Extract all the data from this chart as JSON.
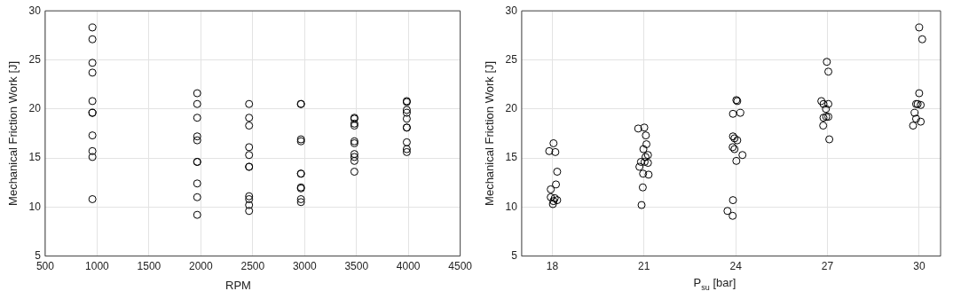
{
  "chart_data": [
    {
      "type": "scatter",
      "xlabel": "RPM",
      "ylabel": "Mechanical Friction Work [J]",
      "xlim": [
        500,
        4500
      ],
      "xticks": [
        500,
        1000,
        1500,
        2000,
        2500,
        3000,
        3500,
        4000,
        4500
      ],
      "ylim": [
        5,
        30
      ],
      "yticks": [
        5,
        10,
        15,
        20,
        25,
        30
      ],
      "grid": true,
      "marker": "circle",
      "series": [
        {
          "color": "#000000",
          "x": [
            955,
            955,
            955,
            955,
            955,
            955,
            955,
            955,
            955,
            955,
            955,
            1965,
            1965,
            1965,
            1965,
            1965,
            1965,
            1965,
            1965,
            1965,
            1965,
            2465,
            2465,
            2465,
            2465,
            2465,
            2465,
            2465,
            2465,
            2465,
            2465,
            2465,
            2965,
            2965,
            2965,
            2965,
            2965,
            2965,
            2965,
            2965,
            2965,
            2965,
            3480,
            3480,
            3480,
            3480,
            3480,
            3480,
            3480,
            3480,
            3480,
            3480,
            3985,
            3985,
            3985,
            3985,
            3985,
            3985,
            3985,
            3985,
            3985,
            3985
          ],
          "values": [
            28.3,
            27.1,
            24.7,
            23.7,
            20.8,
            19.6,
            19.6,
            17.3,
            15.7,
            15.1,
            10.8,
            21.6,
            20.5,
            19.1,
            17.2,
            16.8,
            14.6,
            14.6,
            12.4,
            11.0,
            9.2,
            20.5,
            19.1,
            18.3,
            16.1,
            15.3,
            14.1,
            14.1,
            11.1,
            10.8,
            10.2,
            9.6,
            20.5,
            20.5,
            16.9,
            16.7,
            13.4,
            13.4,
            12.0,
            11.9,
            10.8,
            10.5,
            19.1,
            19.0,
            18.5,
            18.3,
            16.7,
            16.5,
            15.4,
            15.1,
            14.7,
            13.6,
            20.8,
            20.7,
            19.9,
            19.6,
            19.0,
            18.1,
            18.1,
            16.6,
            15.9,
            15.6
          ]
        }
      ]
    },
    {
      "type": "scatter",
      "xlabel": "P$_{su}$ [bar]",
      "ylabel": "Mechanical Friction Work [J]",
      "xlim": [
        17,
        30.7
      ],
      "xticks": [
        18,
        21,
        24,
        27,
        30
      ],
      "ylim": [
        5,
        30
      ],
      "yticks": [
        5,
        10,
        15,
        20,
        25,
        30
      ],
      "grid": true,
      "marker": "circle",
      "series": [
        {
          "color": "#000000",
          "x": [
            18.04,
            17.9,
            18.1,
            18.16,
            18.12,
            17.95,
            17.95,
            18.08,
            18.16,
            18.04,
            18.02,
            20.81,
            21.01,
            21.06,
            21.08,
            20.98,
            21.13,
            21.05,
            21.02,
            20.9,
            21.13,
            20.85,
            20.97,
            21.15,
            20.96,
            20.92,
            24.02,
            24.05,
            23.91,
            24.15,
            23.91,
            23.96,
            24.05,
            23.9,
            23.96,
            24.22,
            24.02,
            23.91,
            23.73,
            23.9,
            26.98,
            27.03,
            26.8,
            26.87,
            27.03,
            26.95,
            26.87,
            26.96,
            27.03,
            26.86,
            27.06,
            30.0,
            30.1,
            30.0,
            29.9,
            29.95,
            30.05,
            29.85,
            29.9,
            30.05,
            29.8
          ],
          "values": [
            16.5,
            15.7,
            15.6,
            13.6,
            12.3,
            11.8,
            11.0,
            10.9,
            10.7,
            10.6,
            10.3,
            18.0,
            18.1,
            17.3,
            16.4,
            15.9,
            15.3,
            15.1,
            14.6,
            14.6,
            14.5,
            14.1,
            13.4,
            13.3,
            12.0,
            10.2,
            20.9,
            20.8,
            19.5,
            19.6,
            17.2,
            17.0,
            16.8,
            16.1,
            15.9,
            15.3,
            14.7,
            10.7,
            9.6,
            9.1,
            24.8,
            23.8,
            20.8,
            20.5,
            20.5,
            20.0,
            19.1,
            19.2,
            19.2,
            18.3,
            16.9,
            28.3,
            27.1,
            21.6,
            20.5,
            20.5,
            20.4,
            19.6,
            19.0,
            18.7,
            18.3
          ]
        }
      ]
    }
  ]
}
